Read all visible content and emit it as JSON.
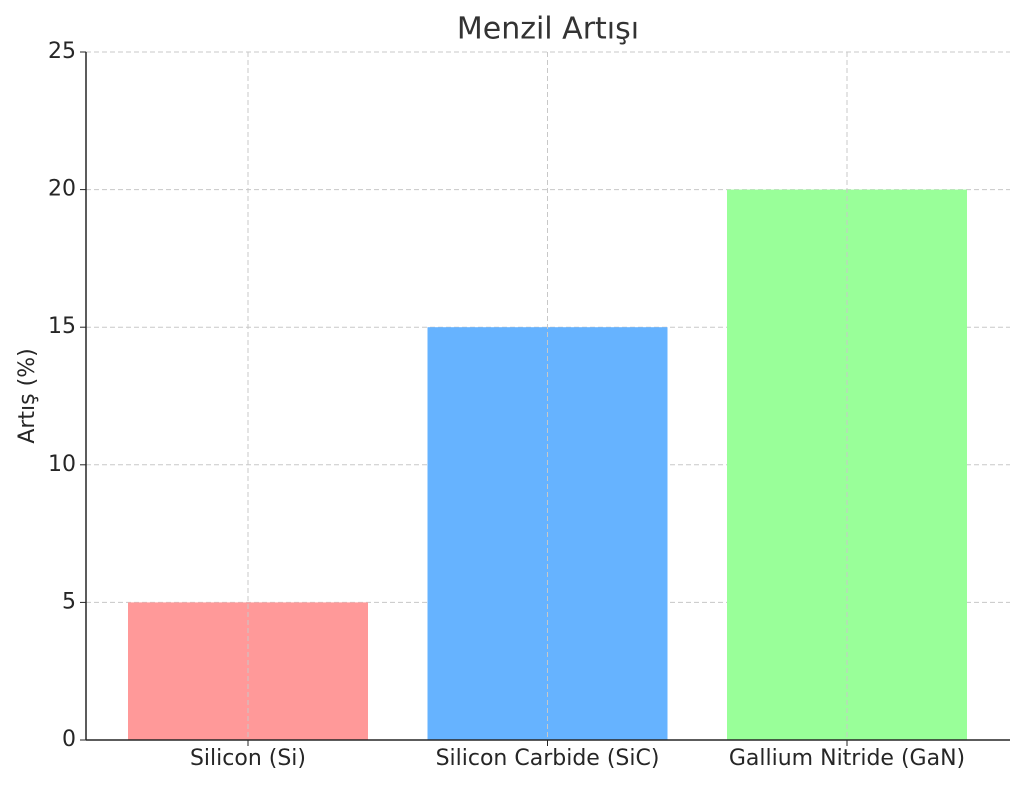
{
  "chart_data": {
    "type": "bar",
    "title": "Menzil Artışı",
    "y_label": "Artış (%)",
    "categories": [
      "Silicon (Si)",
      "Silicon Carbide (SiC)",
      "Gallium Nitride (GaN)"
    ],
    "values": [
      5,
      15,
      20
    ],
    "colors": [
      "#ff9999",
      "#66b3ff",
      "#99ff99"
    ],
    "ylim": [
      0,
      25
    ],
    "yticks": [
      0,
      5,
      10,
      15,
      20,
      25
    ],
    "grid": true
  }
}
